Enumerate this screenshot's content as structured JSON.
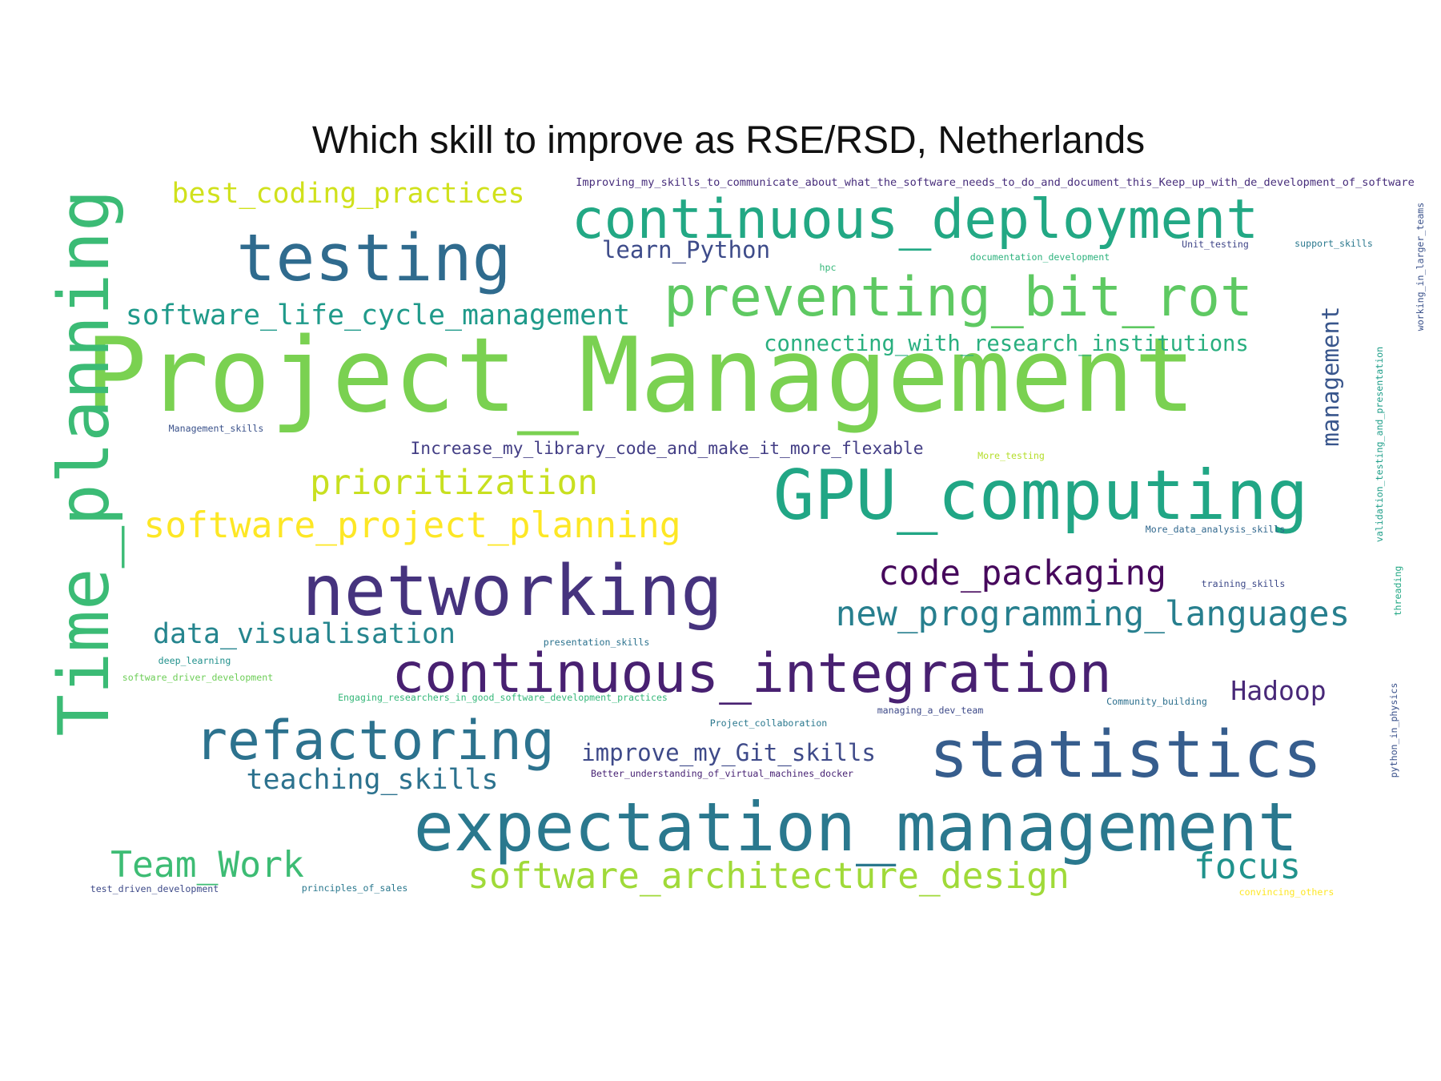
{
  "chart_data": {
    "type": "wordcloud",
    "title": "Which skill to improve as RSE/RSD, Netherlands",
    "colormap": "viridis",
    "background": "#ffffff",
    "words": [
      {
        "text": "Project_Management",
        "weight": 132,
        "color": "#7ad151"
      },
      {
        "text": "Time_planning",
        "weight": 90,
        "color": "#3bbb75"
      },
      {
        "text": "networking",
        "weight": 90,
        "color": "#46337e"
      },
      {
        "text": "GPU_computing",
        "weight": 88,
        "color": "#21a685"
      },
      {
        "text": "expectation_management",
        "weight": 86,
        "color": "#2a788e"
      },
      {
        "text": "statistics",
        "weight": 84,
        "color": "#365d8d"
      },
      {
        "text": "testing",
        "weight": 84,
        "color": "#2f6b8e"
      },
      {
        "text": "continuous_deployment",
        "weight": 70,
        "color": "#22a884"
      },
      {
        "text": "continuous_integration",
        "weight": 70,
        "color": "#482071"
      },
      {
        "text": "preventing_bit_rot",
        "weight": 70,
        "color": "#5ec962"
      },
      {
        "text": "refactoring",
        "weight": 70,
        "color": "#2c728e"
      },
      {
        "text": "software_project_planning",
        "weight": 46,
        "color": "#fde725"
      },
      {
        "text": "software_architecture_design",
        "weight": 46,
        "color": "#a0da39"
      },
      {
        "text": "Team_Work",
        "weight": 46,
        "color": "#3dbc74"
      },
      {
        "text": "focus",
        "weight": 46,
        "color": "#20928c"
      },
      {
        "text": "prioritization",
        "weight": 44,
        "color": "#c8e020"
      },
      {
        "text": "new_programming_languages",
        "weight": 44,
        "color": "#277f8e"
      },
      {
        "text": "code_packaging",
        "weight": 44,
        "color": "#46085c"
      },
      {
        "text": "teaching_skills",
        "weight": 36,
        "color": "#2c728e"
      },
      {
        "text": "data_visualisation",
        "weight": 36,
        "color": "#25858e"
      },
      {
        "text": "software_life_cycle_management",
        "weight": 36,
        "color": "#1f9a8a"
      },
      {
        "text": "best_coding_practices",
        "weight": 36,
        "color": "#d0e11c"
      },
      {
        "text": "Hadoop",
        "weight": 34,
        "color": "#482878"
      },
      {
        "text": "management",
        "weight": 30,
        "color": "#39568c"
      },
      {
        "text": "improve_my_Git_skills",
        "weight": 30,
        "color": "#3e4a89"
      },
      {
        "text": "learn_Python",
        "weight": 30,
        "color": "#3e4c8a"
      },
      {
        "text": "connecting_with_research_institutions",
        "weight": 28,
        "color": "#29af7f"
      },
      {
        "text": "Increase_my_library_code_and_make_it_more_flexable",
        "weight": 22,
        "color": "#433e85"
      },
      {
        "text": "Improving_my_skills_to_communicate_about_what_the_software_needs_to_do_and_document_this_Keep_up_with_de_development_of_software",
        "weight": 14,
        "color": "#472d7b"
      },
      {
        "text": "validation_testing_and_presentation",
        "weight": 12,
        "color": "#1f9e89"
      },
      {
        "text": "working_in_larger_teams",
        "weight": 12,
        "color": "#3b528b"
      },
      {
        "text": "documentation_development",
        "weight": 12,
        "color": "#2db27d"
      },
      {
        "text": "Unit_testing",
        "weight": 12,
        "color": "#404688"
      },
      {
        "text": "support_skills",
        "weight": 12,
        "color": "#2a788e"
      },
      {
        "text": "hpc",
        "weight": 12,
        "color": "#35b779"
      },
      {
        "text": "Management_skills",
        "weight": 12,
        "color": "#3b528b"
      },
      {
        "text": "More_testing",
        "weight": 12,
        "color": "#b5de2b"
      },
      {
        "text": "More_data_analysis_skills",
        "weight": 12,
        "color": "#31688e"
      },
      {
        "text": "training_skills",
        "weight": 12,
        "color": "#3e4a89"
      },
      {
        "text": "threading",
        "weight": 12,
        "color": "#22a884"
      },
      {
        "text": "presentation_skills",
        "weight": 12,
        "color": "#2c728e"
      },
      {
        "text": "deep_learning",
        "weight": 12,
        "color": "#21918c"
      },
      {
        "text": "software_driver_development",
        "weight": 12,
        "color": "#6ece58"
      },
      {
        "text": "Engaging_researchers_in_good_software_development_practices",
        "weight": 12,
        "color": "#35b779"
      },
      {
        "text": "Community_building",
        "weight": 12,
        "color": "#2d708e"
      },
      {
        "text": "Project_collaboration",
        "weight": 12,
        "color": "#2a788e"
      },
      {
        "text": "managing_a_dev_team",
        "weight": 12,
        "color": "#3e4a89"
      },
      {
        "text": "Better_understanding_of_virtual_machines_docker",
        "weight": 12,
        "color": "#482374"
      },
      {
        "text": "python_in_physics",
        "weight": 12,
        "color": "#3b528b"
      },
      {
        "text": "test_driven_development",
        "weight": 12,
        "color": "#3e4a89"
      },
      {
        "text": "principles_of_sales",
        "weight": 12,
        "color": "#2a788e"
      },
      {
        "text": "convincing_others",
        "weight": 12,
        "color": "#fde725"
      }
    ]
  }
}
